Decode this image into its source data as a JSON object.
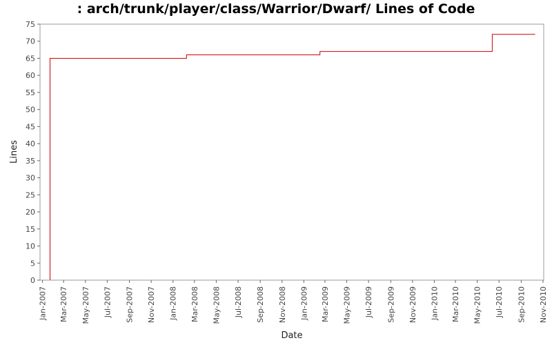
{
  "chart_data": {
    "type": "line",
    "title": ": arch/trunk/player/class/Warrior/Dwarf/ Lines of Code",
    "xlabel": "Date",
    "ylabel": "Lines",
    "x_ticks": [
      "Jan-2007",
      "Mar-2007",
      "May-2007",
      "Jul-2007",
      "Sep-2007",
      "Nov-2007",
      "Jan-2008",
      "Mar-2008",
      "May-2008",
      "Jul-2008",
      "Sep-2008",
      "Nov-2008",
      "Jan-2009",
      "Mar-2009",
      "May-2009",
      "Jul-2009",
      "Sep-2009",
      "Nov-2009",
      "Jan-2010",
      "Mar-2010",
      "May-2010",
      "Jul-2010",
      "Sep-2010",
      "Nov-2010"
    ],
    "y_ticks": [
      0,
      5,
      10,
      15,
      20,
      25,
      30,
      35,
      40,
      45,
      50,
      55,
      60,
      65,
      70,
      75
    ],
    "ylim": [
      0,
      75
    ],
    "xlim": [
      "2006-12-25",
      "2010-11-03"
    ],
    "step": true,
    "grid": false,
    "line_color": "#cc0000",
    "series": [
      {
        "x": [
          "2007-01-22",
          "2007-01-22",
          "2008-02-08",
          "2009-02-15",
          "2010-06-12",
          "2010-10-10"
        ],
        "values": [
          0,
          65,
          66,
          67,
          72,
          72
        ]
      }
    ]
  }
}
